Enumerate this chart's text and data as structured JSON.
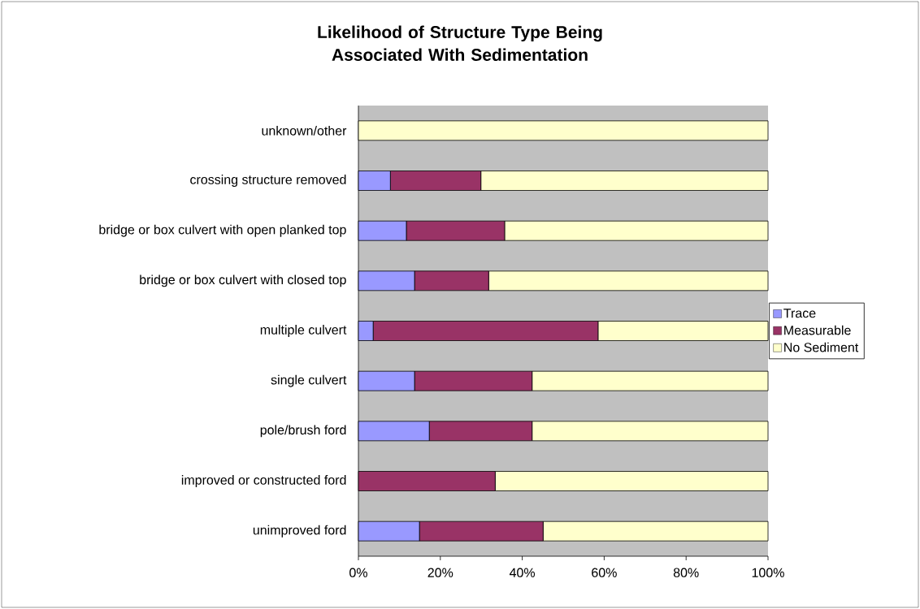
{
  "chart_data": {
    "type": "bar",
    "orientation": "horizontal",
    "stacked": true,
    "title": "Likelihood of Structure Type Being Associated With Sedimentation",
    "categories": [
      "unknown/other",
      "crossing structure removed",
      "bridge or box culvert with open planked top",
      "bridge or box culvert with closed top",
      "multiple culvert",
      "single culvert",
      "pole/brush ford",
      "improved or constructed ford",
      "unimproved ford"
    ],
    "series": [
      {
        "name": "Trace",
        "color": "#9999ff",
        "values": [
          0,
          7.8,
          11.7,
          13.7,
          3.6,
          13.7,
          17.3,
          0,
          14.9
        ]
      },
      {
        "name": "Measurable",
        "color": "#993366",
        "values": [
          0,
          22.1,
          24.0,
          18.1,
          54.9,
          28.7,
          25.1,
          33.4,
          30.2
        ]
      },
      {
        "name": "No Sediment",
        "color": "#ffffcc",
        "values": [
          100,
          70.1,
          64.3,
          68.2,
          41.5,
          57.6,
          57.6,
          66.6,
          54.9
        ]
      }
    ],
    "xlim": [
      0,
      100
    ],
    "xticks": [
      {
        "value": 0,
        "label": "0%"
      },
      {
        "value": 20,
        "label": "20%"
      },
      {
        "value": 40,
        "label": "40%"
      },
      {
        "value": 60,
        "label": "60%"
      },
      {
        "value": 80,
        "label": "80%"
      },
      {
        "value": 100,
        "label": "100%"
      }
    ],
    "legend": "right"
  }
}
